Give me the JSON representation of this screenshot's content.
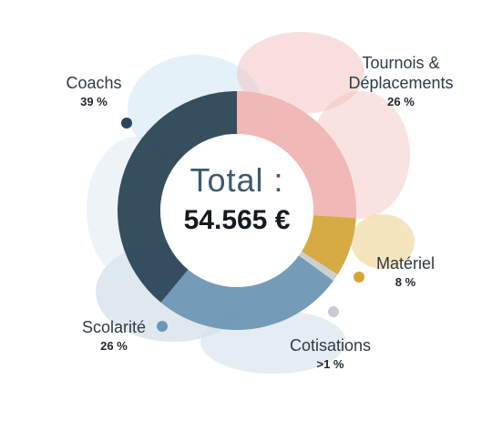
{
  "chart_data": {
    "type": "donut",
    "title": "Total :",
    "total": "54.565 €",
    "categories": [
      "Tournois & Déplacements",
      "Matériel",
      "Cotisations",
      "Scolarité",
      "Coachs"
    ],
    "values": [
      26,
      8,
      1,
      26,
      39
    ],
    "value_labels": [
      "26 %",
      "8 %",
      ">1 %",
      "26 %",
      "39 %"
    ],
    "colors": [
      "#efb5b3",
      "#d4a63a",
      "#c9cdd1",
      "#6e97b3",
      "#2b4656"
    ],
    "legend": "labels around ring"
  },
  "labels": {
    "tournois_line1": "Tournois &",
    "tournois_line2": "Déplacements",
    "tournois_pct": "26 %",
    "materiel": "Matériel",
    "materiel_pct": "8 %",
    "cotisations": "Cotisations",
    "cotisations_pct": ">1 %",
    "scolarite": "Scolarité",
    "scolarite_pct": "26 %",
    "coachs": "Coachs",
    "coachs_pct": "39 %"
  }
}
